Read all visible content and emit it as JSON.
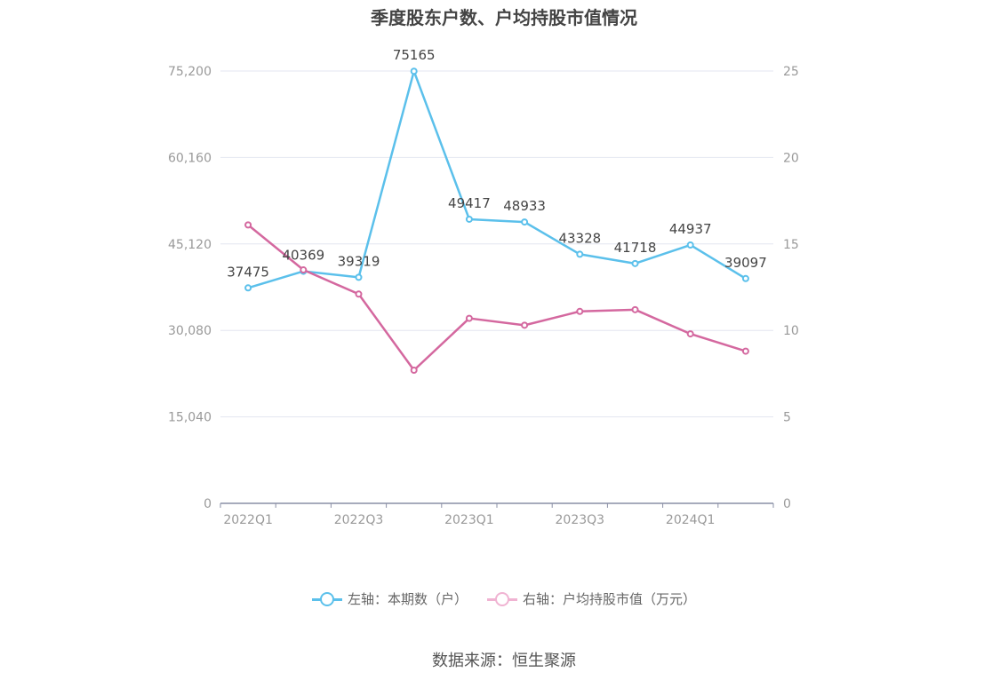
{
  "title": "季度股东户数、户均持股市值情况",
  "source": "数据来源：恒生聚源",
  "chart_data": {
    "type": "line",
    "title": "季度股东户数、户均持股市值情况",
    "x": [
      "2022Q1",
      "2022Q2",
      "2022Q3",
      "2022Q4",
      "2023Q1",
      "2023Q2",
      "2023Q3",
      "2023Q4",
      "2024Q1",
      "2024Q2"
    ],
    "x_tick_labels": [
      "2022Q1",
      "2022Q3",
      "2023Q1",
      "2023Q3",
      "2024Q1"
    ],
    "left_axis": {
      "ylim": [
        0,
        75200
      ],
      "ticks": [
        "0",
        "15,040",
        "30,080",
        "45,120",
        "60,160",
        "75,200"
      ]
    },
    "right_axis": {
      "ylim": [
        0,
        25
      ],
      "ticks": [
        "0",
        "5",
        "10",
        "15",
        "20",
        "25"
      ]
    },
    "grid": true,
    "legend_position": "bottom",
    "series": [
      {
        "name": "左轴：本期数（户）",
        "axis": "left",
        "color": "#5bc0eb",
        "values": [
          37475,
          40369,
          39319,
          75165,
          49417,
          48933,
          43328,
          41718,
          44937,
          39097
        ],
        "labels": [
          "37475",
          "40369",
          "39319",
          "75165",
          "49417",
          "48933",
          "43328",
          "41718",
          "44937",
          "39097"
        ]
      },
      {
        "name": "右轴：户均持股市值（万元）",
        "axis": "right",
        "color": "#d4689f",
        "values": [
          16.1,
          13.5,
          12.1,
          7.7,
          10.7,
          10.3,
          11.1,
          11.2,
          9.8,
          8.8
        ]
      }
    ]
  },
  "legend": {
    "left_label": "左轴：本期数（户）",
    "right_label": "右轴：户均持股市值（万元）",
    "left_color": "#5bc0eb",
    "right_color": "#d4689f"
  }
}
